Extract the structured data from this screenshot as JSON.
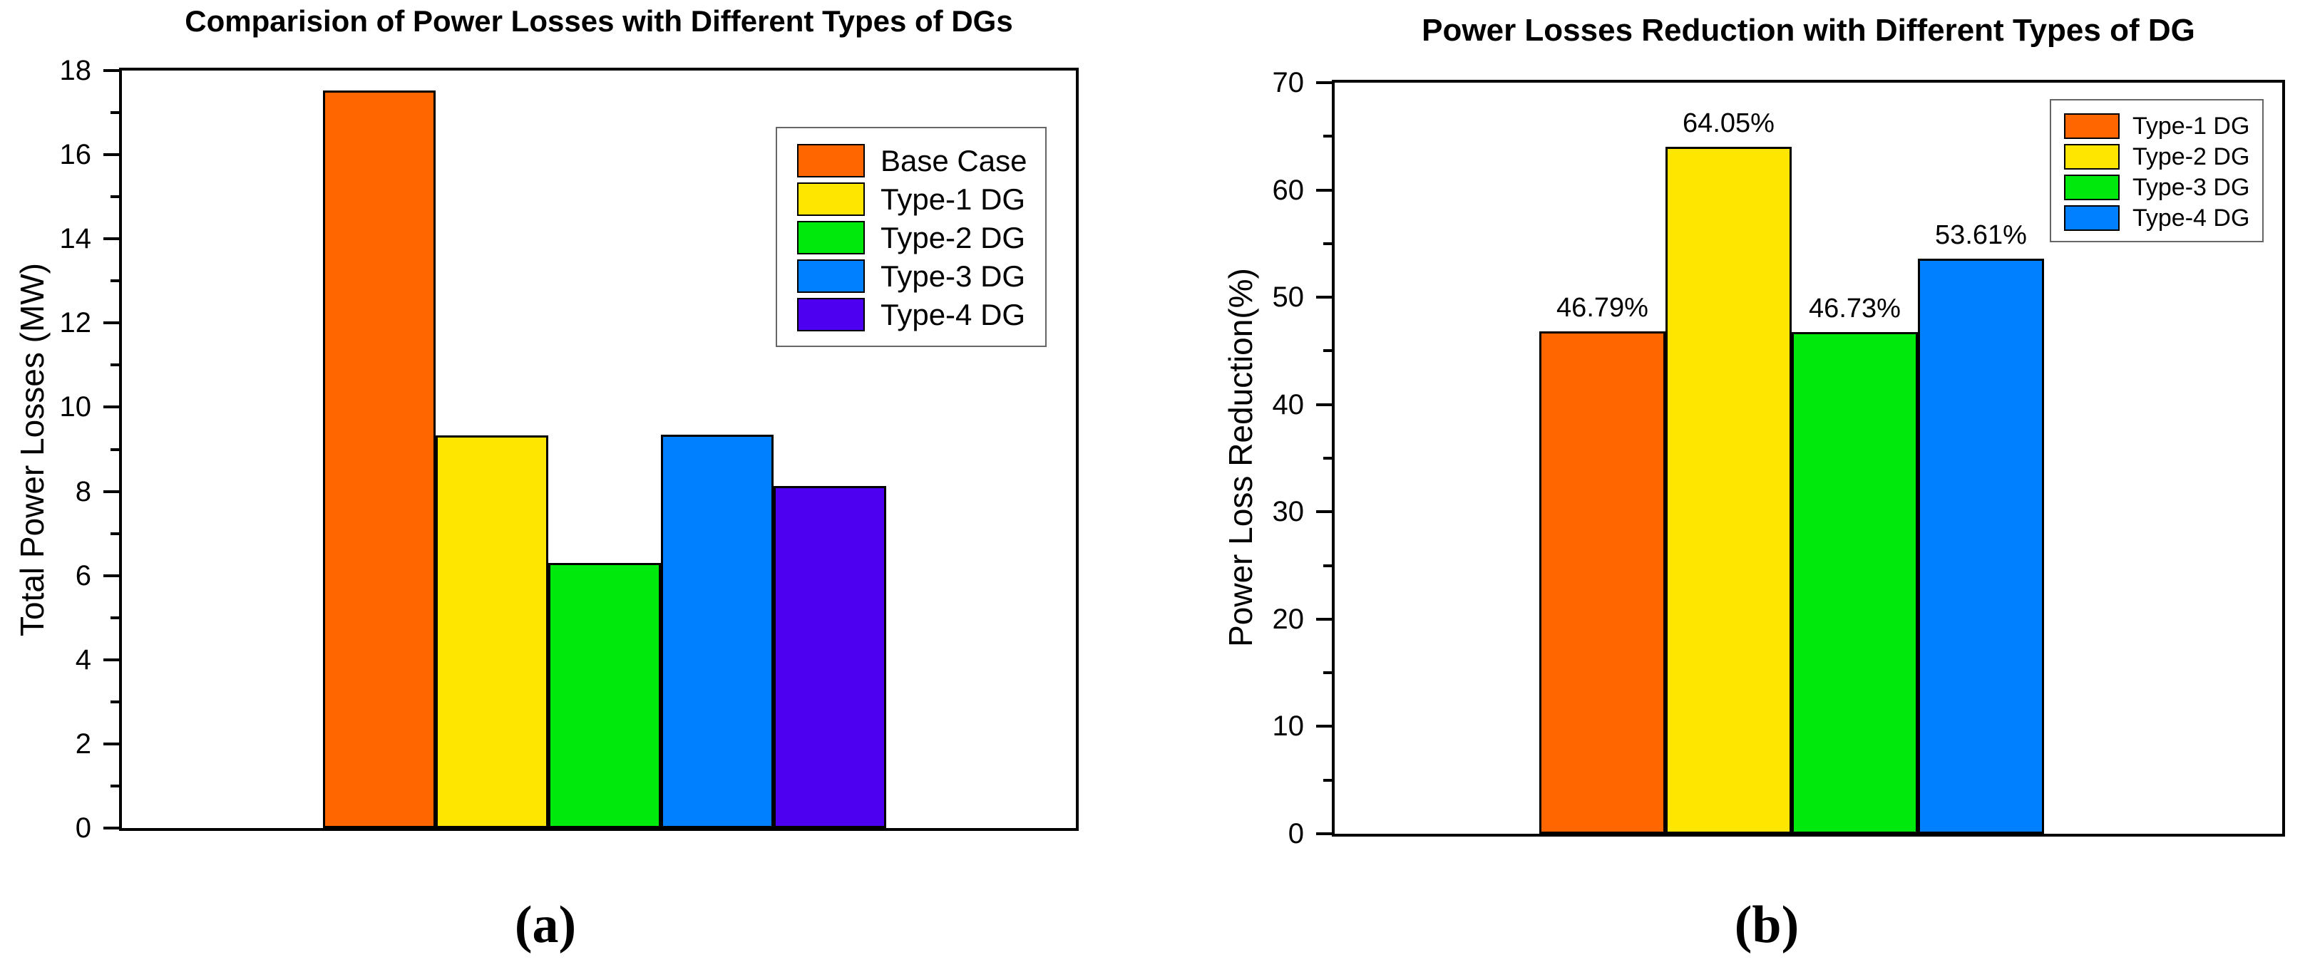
{
  "figure": {
    "captions": {
      "a": "(a)",
      "b": "(b)"
    }
  },
  "colors": {
    "orange": "#FF6600",
    "yellow": "#FFE600",
    "green": "#00E90C",
    "blue": "#0080FF",
    "purple": "#4D00F0",
    "axis": "#000000",
    "background": "#FFFFFF"
  },
  "chart_data": [
    {
      "id": "a",
      "type": "bar",
      "title": "Comparision of Power Losses with Different Types of DGs",
      "xlabel": "",
      "ylabel": "Total Power Losses (MW)",
      "ylim": [
        0,
        18
      ],
      "yticks": [
        0,
        2,
        4,
        6,
        8,
        10,
        12,
        14,
        16,
        18
      ],
      "ytick_minor_step": 1,
      "grid": false,
      "legend_position": "upper-right-inside",
      "categories": [
        "Base Case",
        "Type-1 DG",
        "Type-2 DG",
        "Type-3 DG",
        "Type-4 DG"
      ],
      "values": [
        17.53,
        9.33,
        6.3,
        9.34,
        8.13
      ],
      "bar_colors": [
        "orange",
        "yellow",
        "green",
        "blue",
        "purple"
      ],
      "bar_labels": []
    },
    {
      "id": "b",
      "type": "bar",
      "title": "Power Losses Reduction with Different Types of DG",
      "xlabel": "",
      "ylabel": "Power Loss Reduction(%)",
      "ylim": [
        0,
        70
      ],
      "yticks": [
        0,
        10,
        20,
        30,
        40,
        50,
        60,
        70
      ],
      "ytick_minor_step": 5,
      "grid": false,
      "legend_position": "upper-right-inside",
      "categories": [
        "Type-1 DG",
        "Type-2 DG",
        "Type-3 DG",
        "Type-4 DG"
      ],
      "values": [
        46.79,
        64.05,
        46.73,
        53.61
      ],
      "bar_colors": [
        "orange",
        "yellow",
        "green",
        "blue"
      ],
      "bar_labels": [
        "46.79%",
        "64.05%",
        "46.73%",
        "53.61%"
      ]
    }
  ]
}
